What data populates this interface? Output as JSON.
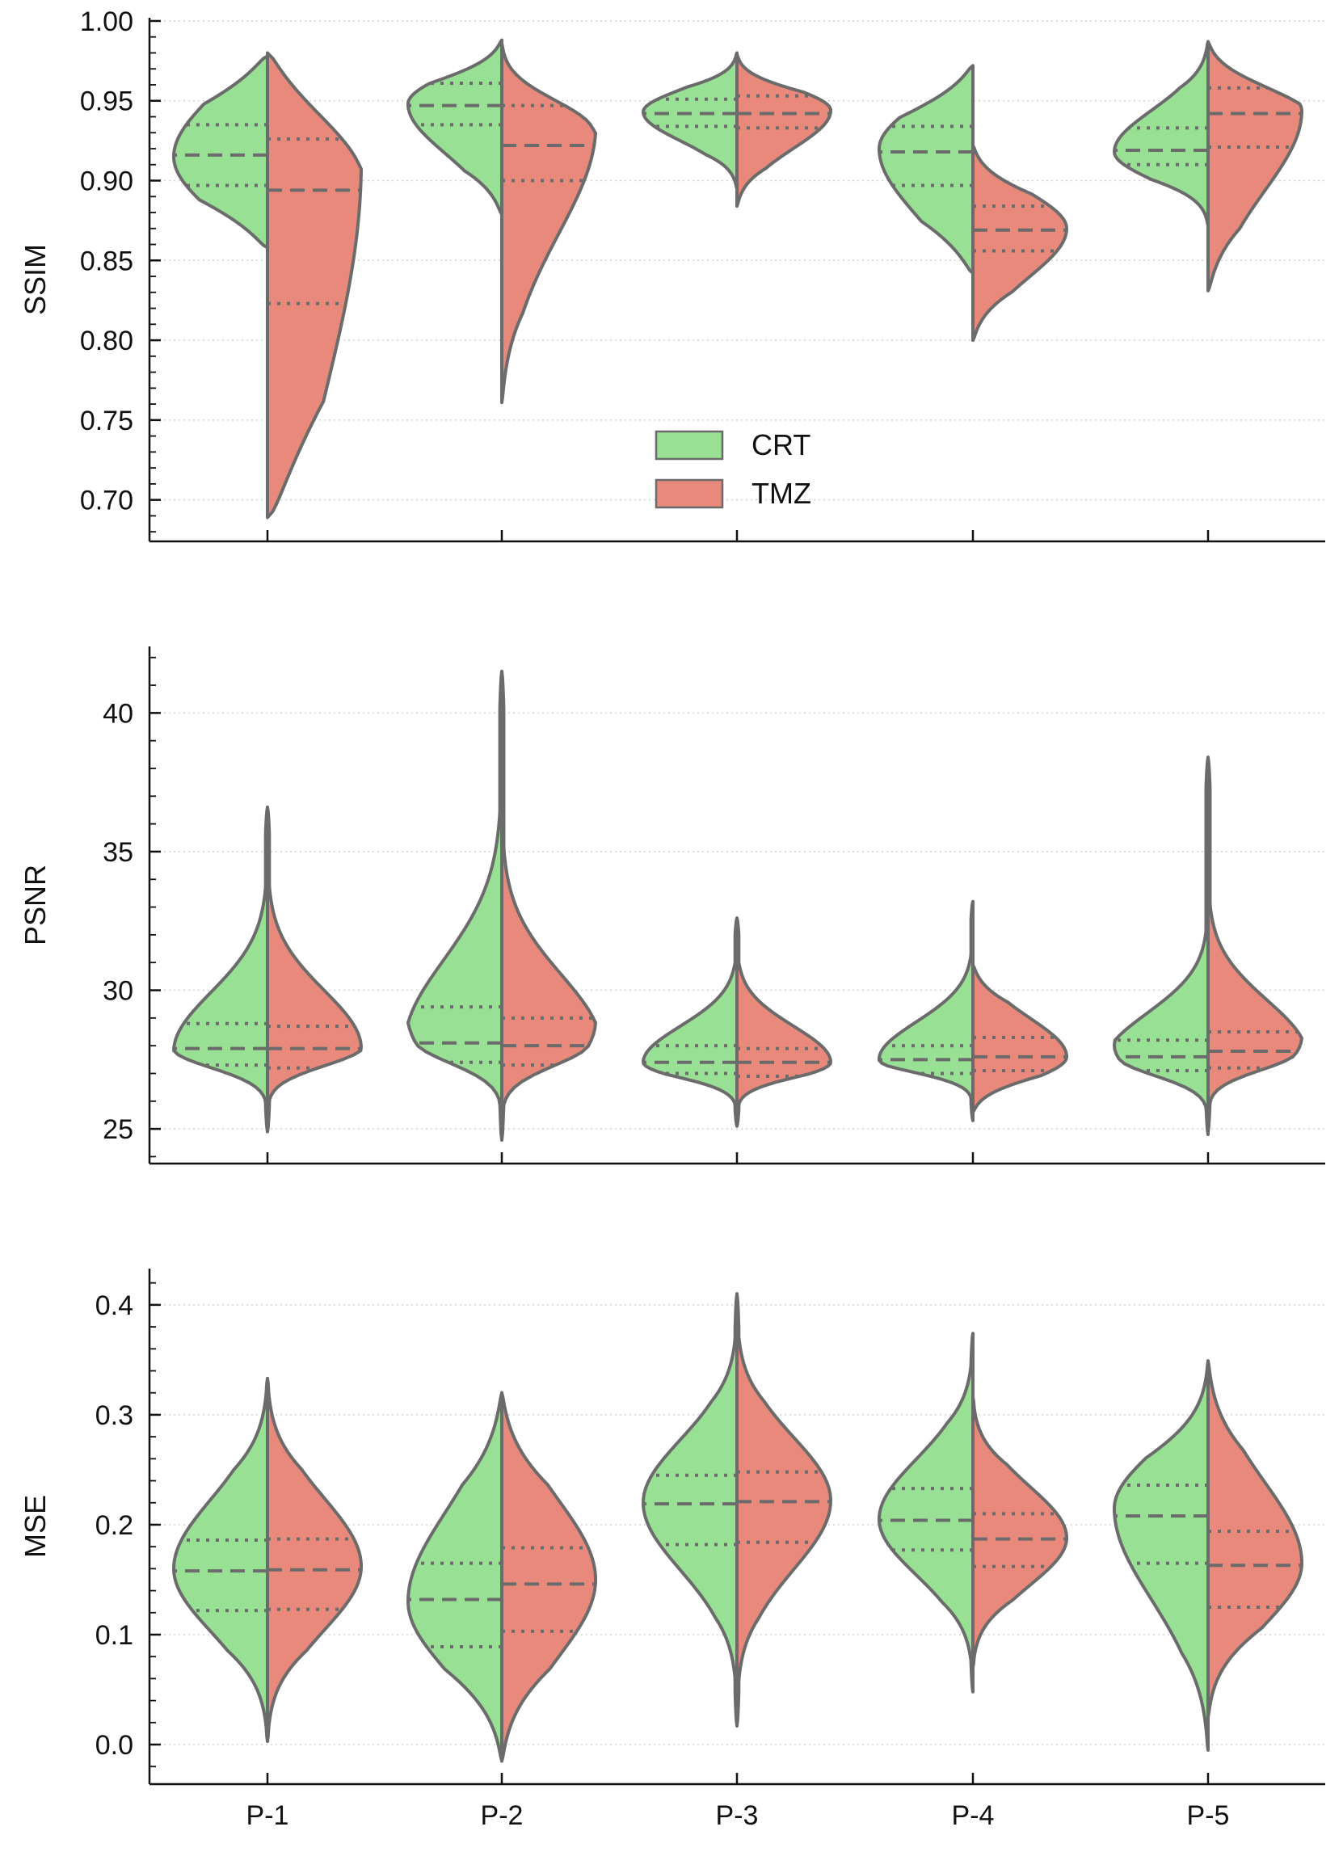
{
  "colors": {
    "crt": "#98e094",
    "tmz": "#e8897b",
    "outline": "#6b6b6b",
    "grid": "#d0d0d0",
    "axis": "#111111"
  },
  "legend": {
    "location": "center",
    "entries": [
      "CRT",
      "TMZ"
    ]
  },
  "chart_data": [
    {
      "type": "violin",
      "split": true,
      "title": "",
      "xlabel": "",
      "ylabel": "SSIM",
      "categories": [
        "P-1",
        "P-2",
        "P-3",
        "P-4",
        "P-5"
      ],
      "ylim": [
        0.674,
        1.002
      ],
      "yticks": [
        0.7,
        0.75,
        0.8,
        0.85,
        0.9,
        0.95,
        1.0
      ],
      "ytick_labels": [
        "0.70",
        "0.75",
        "0.80",
        "0.85",
        "0.90",
        "0.95",
        "1.00"
      ],
      "grid": true,
      "series": [
        {
          "name": "CRT",
          "side": "left",
          "violins": [
            {
              "category": "P-1",
              "min": 0.858,
              "max": 0.978,
              "mode": 0.915,
              "q1": 0.897,
              "median": 0.916,
              "q3": 0.935
            },
            {
              "category": "P-2",
              "min": 0.879,
              "max": 0.988,
              "mode": 0.948,
              "q1": 0.935,
              "median": 0.947,
              "q3": 0.961
            },
            {
              "category": "P-3",
              "min": 0.895,
              "max": 0.98,
              "mode": 0.943,
              "q1": 0.934,
              "median": 0.942,
              "q3": 0.951
            },
            {
              "category": "P-4",
              "min": 0.842,
              "max": 0.972,
              "mode": 0.92,
              "q1": 0.897,
              "median": 0.918,
              "q3": 0.934
            },
            {
              "category": "P-5",
              "min": 0.872,
              "max": 0.987,
              "mode": 0.918,
              "q1": 0.91,
              "median": 0.919,
              "q3": 0.933
            }
          ]
        },
        {
          "name": "TMZ",
          "side": "right",
          "violins": [
            {
              "category": "P-1",
              "min": 0.689,
              "max": 0.98,
              "mode": 0.912,
              "q1": 0.823,
              "median": 0.894,
              "q3": 0.926
            },
            {
              "category": "P-2",
              "min": 0.761,
              "max": 0.986,
              "mode": 0.935,
              "q1": 0.9,
              "median": 0.922,
              "q3": 0.947
            },
            {
              "category": "P-3",
              "min": 0.884,
              "max": 0.979,
              "mode": 0.944,
              "q1": 0.933,
              "median": 0.942,
              "q3": 0.953
            },
            {
              "category": "P-4",
              "min": 0.8,
              "max": 0.922,
              "mode": 0.87,
              "q1": 0.856,
              "median": 0.869,
              "q3": 0.884
            },
            {
              "category": "P-5",
              "min": 0.831,
              "max": 0.987,
              "mode": 0.944,
              "q1": 0.921,
              "median": 0.942,
              "q3": 0.958
            }
          ]
        }
      ]
    },
    {
      "type": "violin",
      "split": true,
      "title": "",
      "xlabel": "",
      "ylabel": "PSNR",
      "categories": [
        "P-1",
        "P-2",
        "P-3",
        "P-4",
        "P-5"
      ],
      "ylim": [
        23.75,
        42.4
      ],
      "yticks": [
        25,
        30,
        35,
        40
      ],
      "ytick_labels": [
        "25",
        "30",
        "35",
        "40"
      ],
      "grid": true,
      "series": [
        {
          "name": "CRT",
          "side": "left",
          "violins": [
            {
              "category": "P-1",
              "min": 24.9,
              "max": 36.6,
              "mode": 27.8,
              "q1": 27.3,
              "median": 27.9,
              "q3": 28.8
            },
            {
              "category": "P-2",
              "min": 24.6,
              "max": 41.5,
              "mode": 28.1,
              "q1": 27.4,
              "median": 28.1,
              "q3": 29.4
            },
            {
              "category": "P-3",
              "min": 25.1,
              "max": 32.6,
              "mode": 27.4,
              "q1": 27.0,
              "median": 27.4,
              "q3": 28.0
            },
            {
              "category": "P-4",
              "min": 25.3,
              "max": 33.2,
              "mode": 27.5,
              "q1": 27.0,
              "median": 27.5,
              "q3": 28.0
            },
            {
              "category": "P-5",
              "min": 24.8,
              "max": 38.4,
              "mode": 27.5,
              "q1": 27.1,
              "median": 27.6,
              "q3": 28.2
            }
          ]
        },
        {
          "name": "TMZ",
          "side": "right",
          "violins": [
            {
              "category": "P-1",
              "min": 24.9,
              "max": 36.6,
              "mode": 27.9,
              "q1": 27.2,
              "median": 27.9,
              "q3": 28.7
            },
            {
              "category": "P-2",
              "min": 24.6,
              "max": 41.5,
              "mode": 28.0,
              "q1": 27.3,
              "median": 28.0,
              "q3": 29.0
            },
            {
              "category": "P-3",
              "min": 25.1,
              "max": 32.6,
              "mode": 27.4,
              "q1": 26.9,
              "median": 27.4,
              "q3": 27.9
            },
            {
              "category": "P-4",
              "min": 25.6,
              "max": 30.9,
              "mode": 27.6,
              "q1": 27.1,
              "median": 27.6,
              "q3": 28.3
            },
            {
              "category": "P-5",
              "min": 24.9,
              "max": 38.4,
              "mode": 27.7,
              "q1": 27.2,
              "median": 27.8,
              "q3": 28.5
            }
          ]
        }
      ]
    },
    {
      "type": "violin",
      "split": true,
      "title": "",
      "xlabel": "",
      "ylabel": "MSE",
      "categories": [
        "P-1",
        "P-2",
        "P-3",
        "P-4",
        "P-5"
      ],
      "ylim": [
        -0.036,
        0.433
      ],
      "yticks": [
        0.0,
        0.1,
        0.2,
        0.3,
        0.4
      ],
      "ytick_labels": [
        "0.0",
        "0.1",
        "0.2",
        "0.3",
        "0.4"
      ],
      "grid": true,
      "series": [
        {
          "name": "CRT",
          "side": "left",
          "violins": [
            {
              "category": "P-1",
              "min": 0.003,
              "max": 0.333,
              "mode": 0.16,
              "q1": 0.122,
              "median": 0.158,
              "q3": 0.186
            },
            {
              "category": "P-2",
              "min": -0.015,
              "max": 0.32,
              "mode": 0.13,
              "q1": 0.089,
              "median": 0.132,
              "q3": 0.165
            },
            {
              "category": "P-3",
              "min": 0.017,
              "max": 0.41,
              "mode": 0.22,
              "q1": 0.182,
              "median": 0.219,
              "q3": 0.245
            },
            {
              "category": "P-4",
              "min": 0.048,
              "max": 0.374,
              "mode": 0.205,
              "q1": 0.177,
              "median": 0.204,
              "q3": 0.233
            },
            {
              "category": "P-5",
              "min": -0.005,
              "max": 0.349,
              "mode": 0.215,
              "q1": 0.165,
              "median": 0.208,
              "q3": 0.236
            }
          ]
        },
        {
          "name": "TMZ",
          "side": "right",
          "violins": [
            {
              "category": "P-1",
              "min": 0.003,
              "max": 0.333,
              "mode": 0.162,
              "q1": 0.123,
              "median": 0.159,
              "q3": 0.187
            },
            {
              "category": "P-2",
              "min": -0.015,
              "max": 0.32,
              "mode": 0.15,
              "q1": 0.103,
              "median": 0.146,
              "q3": 0.179
            },
            {
              "category": "P-3",
              "min": 0.017,
              "max": 0.41,
              "mode": 0.222,
              "q1": 0.184,
              "median": 0.221,
              "q3": 0.248
            },
            {
              "category": "P-4",
              "min": 0.07,
              "max": 0.316,
              "mode": 0.188,
              "q1": 0.162,
              "median": 0.187,
              "q3": 0.21
            },
            {
              "category": "P-5",
              "min": 0.025,
              "max": 0.349,
              "mode": 0.165,
              "q1": 0.125,
              "median": 0.163,
              "q3": 0.194
            }
          ]
        }
      ]
    }
  ]
}
